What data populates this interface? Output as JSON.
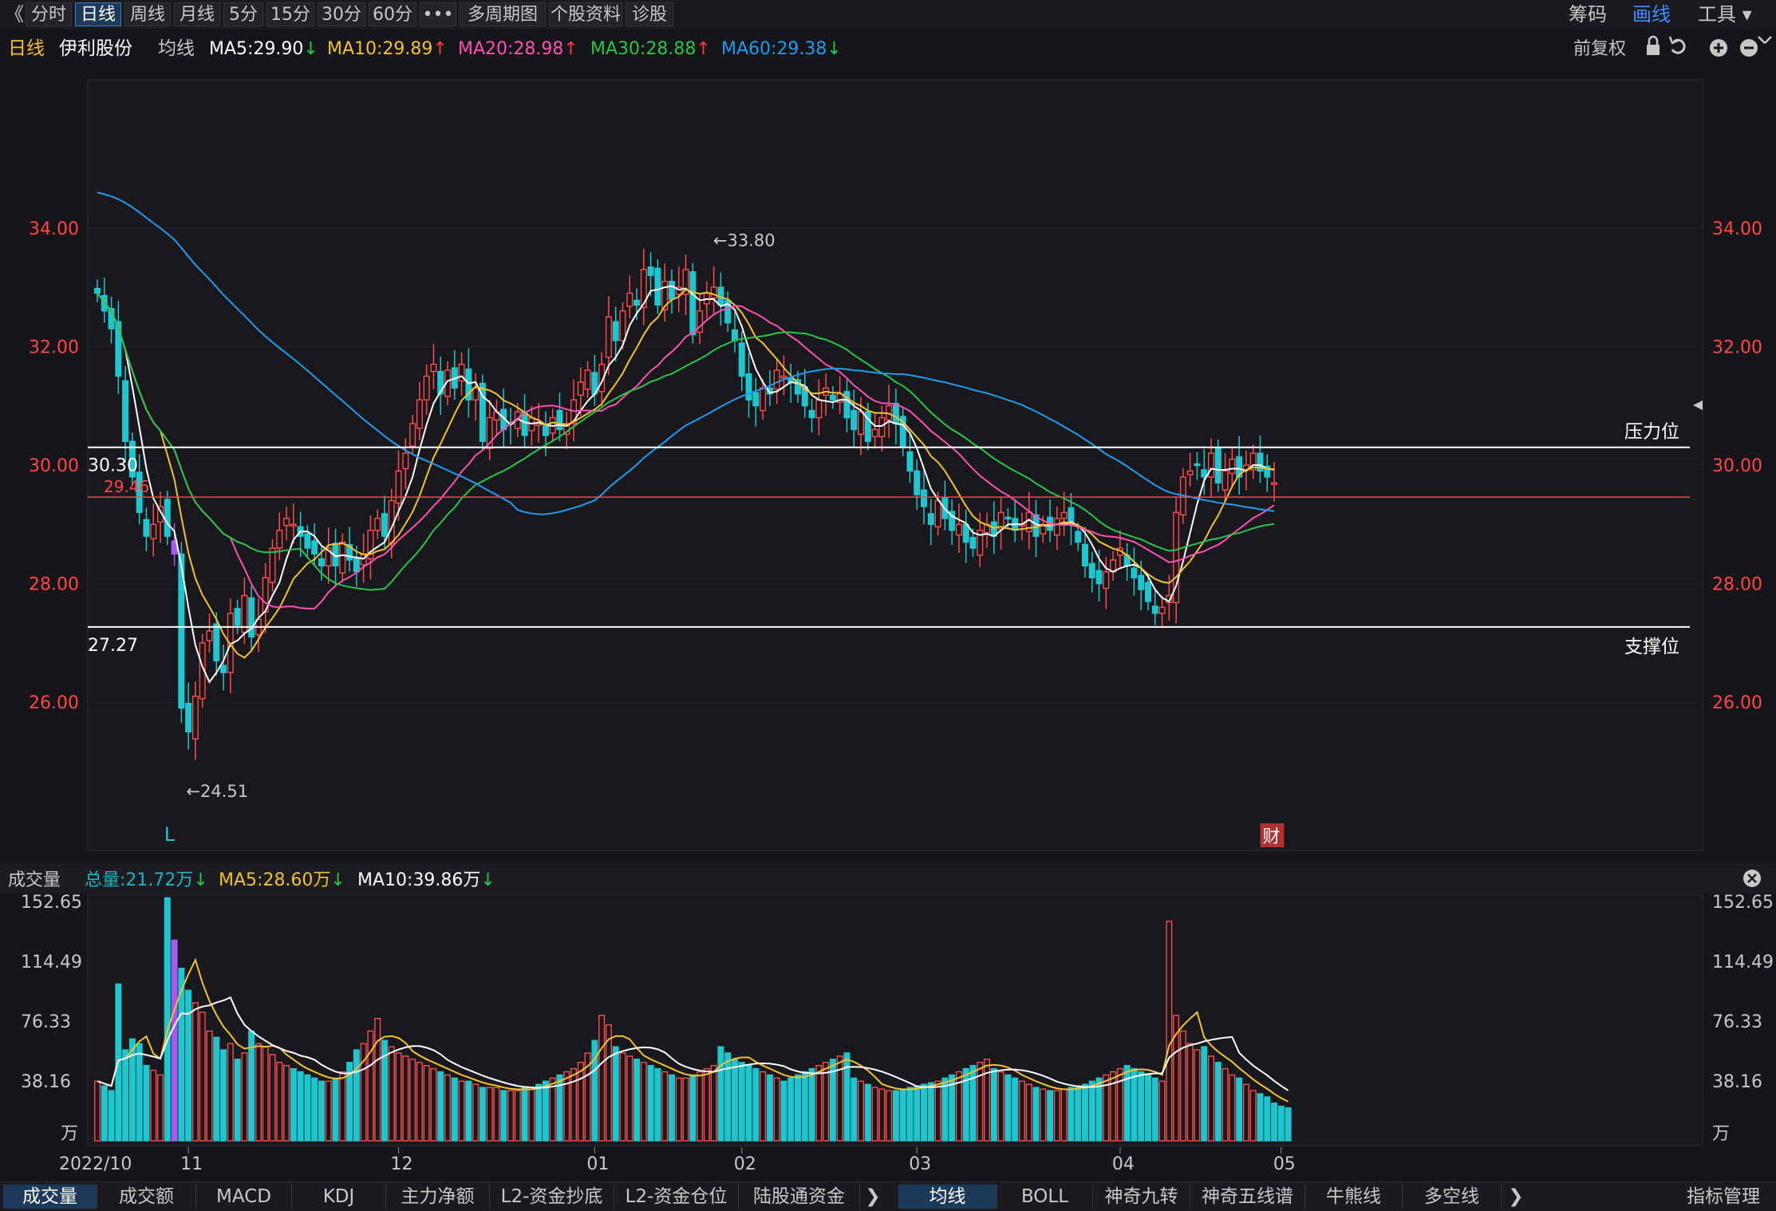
{
  "topbar": {
    "back_glyph": "《",
    "tabs": [
      "分时",
      "日线",
      "周线",
      "月线",
      "5分",
      "15分",
      "30分",
      "60分",
      "•••",
      "多周期图 ▾",
      "个股资料",
      "诊股"
    ],
    "active_tab": 1,
    "right": [
      "筹码",
      "画线",
      "工具 ▾"
    ]
  },
  "header": {
    "period": "日线",
    "stock_name": "伊利股份",
    "indicator": "均线",
    "ma": [
      {
        "label": "MA5:29.90",
        "arrow": "↓",
        "color": "#ffffff",
        "arrow_color": "#22cc44"
      },
      {
        "label": "MA10:29.89",
        "arrow": "↑",
        "color": "#f2c12e",
        "arrow_color": "#ff3b3b"
      },
      {
        "label": "MA20:28.98",
        "arrow": "↑",
        "color": "#ff4fb3",
        "arrow_color": "#ff3b3b"
      },
      {
        "label": "MA30:28.88",
        "arrow": "↑",
        "color": "#27c64a",
        "arrow_color": "#ff3b3b"
      },
      {
        "label": "MA60:29.38",
        "arrow": "↓",
        "color": "#1f9bf0",
        "arrow_color": "#22cc44"
      }
    ],
    "right_label": "前复权"
  },
  "volume_header": {
    "title": "成交量",
    "items": [
      {
        "label": "总量:21.72万",
        "arrow": "↓",
        "color": "#23b2c4"
      },
      {
        "label": "MA5:28.60万",
        "arrow": "↓",
        "color": "#f2c12e"
      },
      {
        "label": "MA10:39.86万",
        "arrow": "↓",
        "color": "#ffffff"
      }
    ],
    "arrow_color": "#22cc44"
  },
  "bottombar": {
    "left_tabs": [
      "成交量",
      "成交额",
      "MACD",
      "KDJ",
      "主力净额",
      "L2-资金抄底",
      "L2-资金仓位",
      "陆股通资金"
    ],
    "left_active": 0,
    "right_tabs": [
      "均线",
      "BOLL",
      "神奇九转",
      "神奇五线谱",
      "牛熊线",
      "多空线"
    ],
    "right_active": 0,
    "far_right": "指标管理",
    "chevron": "❯"
  },
  "chart_data": {
    "type": "candlestick",
    "price_axis": {
      "ticks": [
        "34.00",
        "32.00",
        "30.00",
        "28.00",
        "26.00"
      ],
      "tick_values": [
        34,
        32,
        30,
        28,
        26
      ],
      "range": [
        23.5,
        36.5
      ]
    },
    "volume_axis": {
      "ticks": [
        "152.65",
        "114.49",
        "76.33",
        "38.16"
      ],
      "tick_values": [
        152.65,
        114.49,
        76.33,
        38.16
      ],
      "unit": "万",
      "range": [
        0,
        152.65
      ]
    },
    "x_labels": [
      {
        "label": "2022/10",
        "i": 0
      },
      {
        "label": "11",
        "i": 13
      },
      {
        "label": "12",
        "i": 43
      },
      {
        "label": "01",
        "i": 71
      },
      {
        "label": "02",
        "i": 92
      },
      {
        "label": "03",
        "i": 117
      },
      {
        "label": "04",
        "i": 146
      },
      {
        "label": "05",
        "i": 169
      }
    ],
    "support": {
      "value": 27.27,
      "label": "27.27",
      "name": "支撑位"
    },
    "resistance": {
      "value": 30.3,
      "label": "30.30",
      "name": "压力位"
    },
    "ref_line": {
      "value": 29.46,
      "label": "29.46"
    },
    "high_marker": {
      "label": "←33.80",
      "i": 87
    },
    "low_marker": {
      "label": "←24.51",
      "i": 12
    },
    "L_marker": {
      "label": "L",
      "i": 10
    },
    "cai_marker": {
      "label": "财",
      "i": 166
    },
    "ma_colors": {
      "ma5": "#ffffff",
      "ma10": "#f2c12e",
      "ma20": "#ff4fb3",
      "ma30": "#27c64a",
      "ma60": "#1f9bf0"
    },
    "up_color": "#ff4b4b",
    "down_color": "#1cc7d0",
    "purple": "#a35bf0",
    "ma60_start": [
      34.6,
      34.4,
      34.1,
      33.8
    ],
    "closes": [
      32.9,
      32.6,
      32.3,
      31.5,
      30.4,
      29.8,
      29.2,
      28.8,
      29.0,
      29.3,
      28.8,
      28.5,
      25.9,
      25.5,
      26.1,
      27.0,
      27.2,
      26.7,
      26.5,
      27.5,
      27.3,
      27.8,
      27.1,
      27.4,
      28.1,
      28.6,
      28.9,
      29.1,
      29.0,
      28.8,
      28.6,
      28.5,
      28.3,
      28.6,
      28.3,
      28.7,
      28.4,
      28.2,
      28.5,
      28.9,
      29.1,
      28.8,
      29.4,
      29.9,
      30.2,
      30.7,
      31.1,
      31.5,
      31.7,
      31.2,
      31.6,
      31.3,
      31.7,
      31.1,
      31.3,
      30.4,
      30.8,
      30.9,
      30.6,
      30.7,
      30.9,
      30.5,
      30.8,
      30.7,
      30.5,
      30.8,
      30.6,
      30.7,
      31.1,
      31.4,
      31.6,
      31.2,
      31.7,
      32.5,
      32.1,
      32.6,
      32.9,
      32.7,
      33.3,
      33.2,
      32.7,
      33.1,
      32.8,
      33.0,
      33.3,
      32.2,
      32.6,
      32.9,
      33.0,
      32.7,
      32.4,
      32.1,
      31.5,
      31.1,
      31.0,
      31.3,
      31.2,
      31.6,
      31.5,
      31.4,
      31.2,
      31.0,
      30.8,
      31.1,
      31.3,
      31.1,
      31.2,
      30.8,
      30.6,
      30.9,
      30.4,
      30.6,
      30.8,
      31.0,
      30.7,
      30.3,
      29.9,
      29.5,
      29.3,
      29.0,
      29.4,
      29.1,
      28.9,
      29.0,
      28.7,
      28.6,
      28.9,
      29.0,
      28.8,
      29.2,
      29.1,
      28.9,
      29.0,
      29.2,
      28.8,
      29.0,
      28.9,
      29.1,
      29.2,
      29.0,
      28.7,
      28.3,
      28.1,
      28.0,
      28.2,
      28.4,
      28.6,
      28.3,
      28.1,
      27.9,
      27.7,
      27.5,
      27.6,
      27.8,
      29.2,
      29.8,
      29.9,
      30.0,
      29.8,
      30.2,
      29.7,
      29.9,
      30.1,
      29.8,
      30.0,
      30.2,
      29.9,
      29.8,
      29.7
    ],
    "volumes": [
      38,
      35,
      32,
      100,
      58,
      65,
      62,
      48,
      45,
      42,
      155,
      128,
      110,
      96,
      88,
      82,
      70,
      66,
      58,
      62,
      52,
      56,
      70,
      62,
      60,
      55,
      50,
      48,
      46,
      44,
      42,
      40,
      38,
      38,
      40,
      44,
      50,
      58,
      62,
      70,
      78,
      64,
      60,
      56,
      54,
      52,
      50,
      48,
      46,
      44,
      42,
      40,
      38,
      38,
      36,
      34,
      34,
      34,
      32,
      32,
      32,
      34,
      34,
      36,
      38,
      40,
      42,
      44,
      46,
      50,
      56,
      64,
      80,
      74,
      60,
      56,
      54,
      52,
      50,
      48,
      46,
      44,
      42,
      40,
      40,
      42,
      44,
      46,
      48,
      60,
      56,
      52,
      50,
      48,
      46,
      44,
      42,
      40,
      38,
      40,
      42,
      44,
      46,
      48,
      50,
      52,
      54,
      56,
      40,
      38,
      36,
      34,
      33,
      32,
      32,
      33,
      34,
      35,
      36,
      37,
      38,
      40,
      42,
      44,
      46,
      48,
      50,
      52,
      46,
      44,
      42,
      40,
      38,
      36,
      34,
      33,
      32,
      32,
      33,
      34,
      35,
      36,
      38,
      40,
      42,
      44,
      46,
      48,
      46,
      44,
      42,
      40,
      38,
      140,
      80,
      70,
      62,
      58,
      60,
      54,
      50,
      46,
      42,
      40,
      36,
      32,
      30,
      28,
      24,
      22,
      21
    ]
  }
}
